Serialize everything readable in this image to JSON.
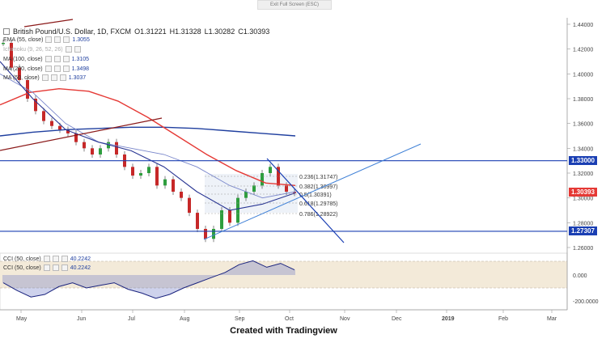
{
  "header": {
    "exit_full_screen": "Exit Full Screen (ESC)",
    "symbol": "British Pound/U.S. Dollar, 1D, FXCM",
    "open": "O1.31221",
    "high": "H1.31328",
    "low": "L1.30282",
    "close": "C1.30393"
  },
  "legends": [
    {
      "label": "EMA (55, close)",
      "value": "1.3055"
    },
    {
      "label": "Ichimoku (9, 26, 52, 26)",
      "value": ""
    },
    {
      "label": "MA (100, close)",
      "value": "1.3105"
    },
    {
      "label": "MA (200, close)",
      "value": "1.3498"
    },
    {
      "label": "MA (50, close)",
      "value": "1.3037"
    }
  ],
  "cci_legends": [
    {
      "label": "CCI (50, close)",
      "value": "40.2242"
    },
    {
      "label": "CCI (50, close)",
      "value": "40.2242"
    }
  ],
  "price_badges": [
    {
      "text": "1.33000",
      "color": "#1a3fb3"
    },
    {
      "text": "1.30393",
      "color": "#e53935"
    },
    {
      "text": "1.27307",
      "color": "#1a3fb3"
    }
  ],
  "fib_labels": [
    "0.236(1.31747)",
    "0.382(1.30997)",
    "0.5(1.30391)",
    "0.618(1.29785)",
    "0.786(1.28922)"
  ],
  "caption": "Created with Tradingview",
  "chart_data": {
    "type": "line",
    "x_ticks": [
      "May",
      "Jun",
      "Jul",
      "Aug",
      "Sep",
      "Oct",
      "Nov",
      "Dec",
      "2019",
      "Feb",
      "Mar"
    ],
    "y_ticks": [
      "1.44000",
      "1.42000",
      "1.40000",
      "1.38000",
      "1.36000",
      "1.34000",
      "1.32000",
      "1.30000",
      "1.28000",
      "1.26000"
    ],
    "cci_ticks": [
      "0.000",
      "-200.0000"
    ],
    "ylim": [
      1.255,
      1.445
    ],
    "price": [
      1.425,
      1.405,
      1.395,
      1.38,
      1.37,
      1.362,
      1.358,
      1.355,
      1.352,
      1.345,
      1.34,
      1.335,
      1.34,
      1.345,
      1.335,
      1.325,
      1.318,
      1.32,
      1.325,
      1.31,
      1.315,
      1.305,
      1.3,
      1.288,
      1.275,
      1.267,
      1.275,
      1.29,
      1.28,
      1.3,
      1.305,
      1.31,
      1.32,
      1.325,
      1.31,
      1.305,
      1.304
    ],
    "ma200": [
      1.35,
      1.353,
      1.355,
      1.356,
      1.357,
      1.357,
      1.356,
      1.354,
      1.352,
      1.35
    ],
    "ma100": [
      1.375,
      1.385,
      1.388,
      1.386,
      1.378,
      1.365,
      1.35,
      1.335,
      1.322,
      1.312,
      1.31
    ],
    "ema55": [
      1.4,
      1.385,
      1.36,
      1.345,
      1.34,
      1.335,
      1.325,
      1.31,
      1.3,
      1.305
    ],
    "ma50": [
      1.41,
      1.38,
      1.355,
      1.345,
      1.338,
      1.325,
      1.305,
      1.29,
      1.295,
      1.304
    ],
    "levels": {
      "resistance": 1.33,
      "support": 1.27307
    },
    "cci": [
      -60,
      -120,
      -170,
      -150,
      -90,
      -60,
      -100,
      -80,
      -60,
      -110,
      -140,
      -180,
      -150,
      -100,
      -60,
      -20,
      20,
      80,
      110,
      60,
      90,
      40
    ]
  }
}
